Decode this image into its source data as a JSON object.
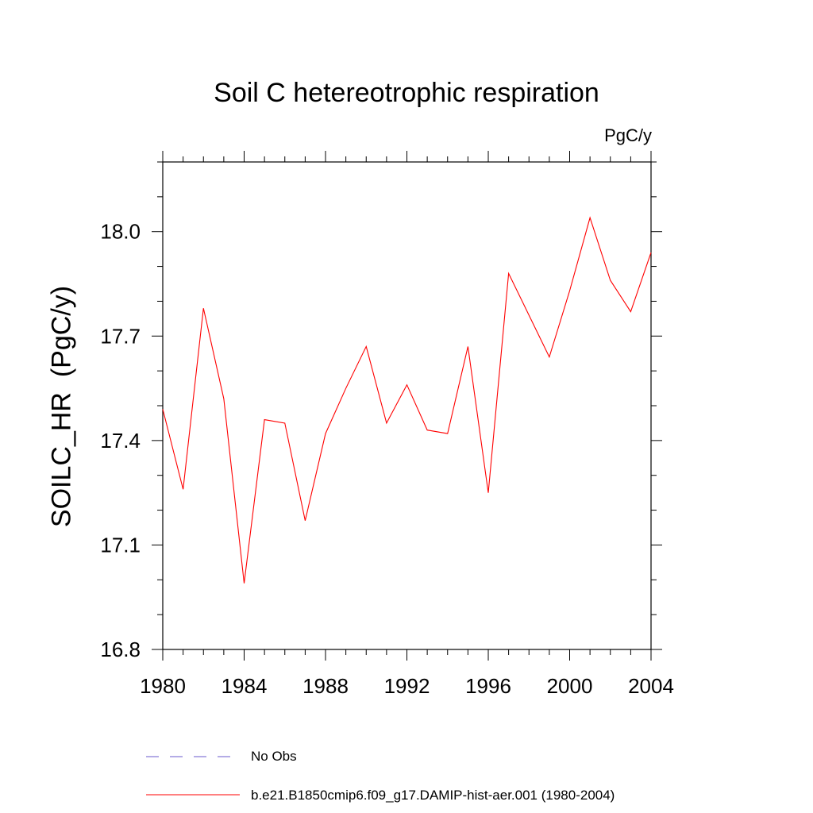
{
  "chart_data": {
    "type": "line",
    "title": "Soil C hetereotrophic respiration",
    "units_label": "PgC/y",
    "ylabel": "SOILC_HR  (PgC/y)",
    "xlabel": "",
    "xlim": [
      1980,
      2004
    ],
    "ylim": [
      16.8,
      18.2
    ],
    "x_ticks": [
      1980,
      1984,
      1988,
      1992,
      1996,
      2000,
      2004
    ],
    "y_ticks": [
      "16.8",
      "17.1",
      "17.4",
      "17.7",
      "18.0"
    ],
    "grid": false,
    "series": [
      {
        "name": "b.e21.B1850cmip6.f09_g17.DAMIP-hist-aer.001 (1980-2004)",
        "color": "#ff0000",
        "style": "solid",
        "x": [
          1980,
          1981,
          1982,
          1983,
          1984,
          1985,
          1986,
          1987,
          1988,
          1989,
          1990,
          1991,
          1992,
          1993,
          1994,
          1995,
          1996,
          1997,
          1998,
          1999,
          2000,
          2001,
          2002,
          2003,
          2004
        ],
        "values": [
          17.49,
          17.26,
          17.78,
          17.52,
          16.99,
          17.46,
          17.45,
          17.17,
          17.42,
          17.55,
          17.67,
          17.45,
          17.56,
          17.43,
          17.42,
          17.67,
          17.25,
          17.88,
          17.76,
          17.64,
          17.83,
          18.04,
          17.86,
          17.77,
          17.94
        ]
      }
    ],
    "legend": {
      "position": "bottom",
      "entries": [
        {
          "label": "No Obs",
          "color": "#6a5acd",
          "style": "dashed"
        },
        {
          "label": "b.e21.B1850cmip6.f09_g17.DAMIP-hist-aer.001 (1980-2004)",
          "color": "#ff0000",
          "style": "solid"
        }
      ]
    }
  }
}
